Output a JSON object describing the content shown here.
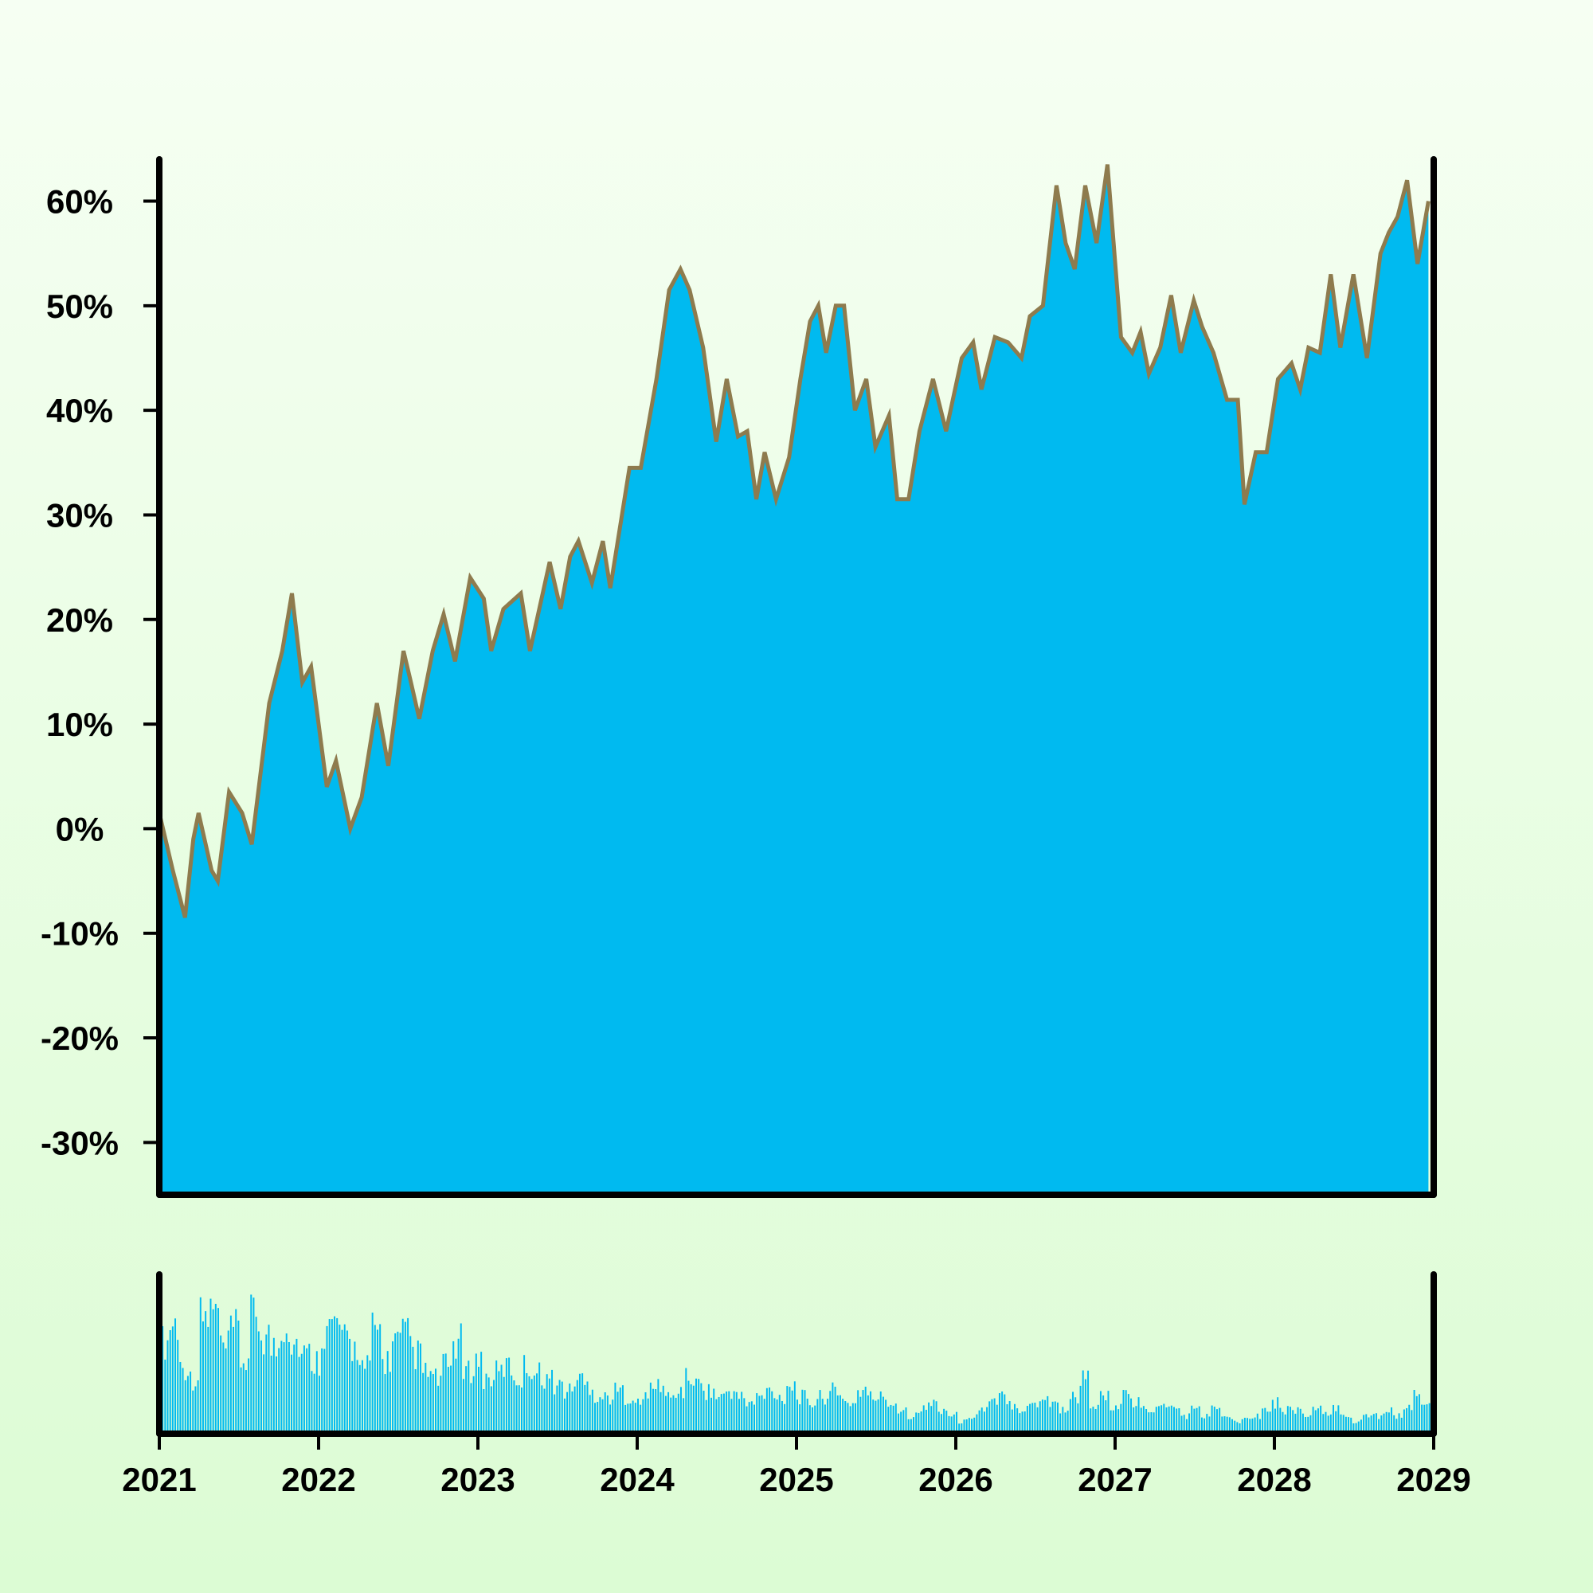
{
  "chart_data": {
    "type": "area",
    "title": "",
    "xlabel": "",
    "ylabel": "",
    "x_range": [
      "2021-01-01",
      "2029-01-01"
    ],
    "x_ticks": [
      "2021",
      "2022",
      "2023",
      "2024",
      "2025",
      "2026",
      "2027",
      "2028",
      "2029"
    ],
    "ylim": [
      -35,
      64
    ],
    "y_ticks": [
      "60%",
      "50%",
      "40%",
      "30%",
      "20%",
      "10%",
      "0%",
      "-10%",
      "-20%",
      "-30%"
    ],
    "y_tick_values": [
      60,
      50,
      40,
      30,
      20,
      10,
      0,
      -10,
      -20,
      -30
    ],
    "y_unit": "%",
    "grid": false,
    "legend": "none",
    "colors": {
      "fill": "#00baf0",
      "line": "#8e7b4e",
      "axis": "#000000"
    },
    "series": [
      {
        "values": [
          [
            "2021-01-01",
            1.5
          ],
          [
            "2021-02-01",
            -4
          ],
          [
            "2021-03-01",
            -8.5
          ],
          [
            "2021-03-20",
            -1
          ],
          [
            "2021-04-01",
            1.5
          ],
          [
            "2021-05-01",
            -4
          ],
          [
            "2021-05-15",
            -5
          ],
          [
            "2021-06-10",
            3.5
          ],
          [
            "2021-07-10",
            1.5
          ],
          [
            "2021-08-01",
            -1.5
          ],
          [
            "2021-09-10",
            12
          ],
          [
            "2021-10-10",
            17
          ],
          [
            "2021-11-01",
            22.5
          ],
          [
            "2021-11-25",
            14
          ],
          [
            "2021-12-15",
            15.5
          ],
          [
            "2022-01-20",
            4
          ],
          [
            "2022-02-10",
            6.5
          ],
          [
            "2022-03-15",
            0
          ],
          [
            "2022-04-10",
            3
          ],
          [
            "2022-05-15",
            12
          ],
          [
            "2022-06-10",
            6
          ],
          [
            "2022-07-15",
            17
          ],
          [
            "2022-08-01",
            14
          ],
          [
            "2022-08-20",
            10.5
          ],
          [
            "2022-09-20",
            17
          ],
          [
            "2022-10-15",
            20.5
          ],
          [
            "2022-11-10",
            16
          ],
          [
            "2022-12-15",
            24
          ],
          [
            "2023-01-15",
            22
          ],
          [
            "2023-02-01",
            17
          ],
          [
            "2023-03-01",
            21
          ],
          [
            "2023-04-10",
            22.5
          ],
          [
            "2023-05-01",
            17
          ],
          [
            "2023-06-15",
            25.5
          ],
          [
            "2023-07-10",
            21
          ],
          [
            "2023-08-01",
            26
          ],
          [
            "2023-08-20",
            27.5
          ],
          [
            "2023-09-20",
            23.5
          ],
          [
            "2023-10-15",
            27.5
          ],
          [
            "2023-11-01",
            23
          ],
          [
            "2023-12-15",
            34.5
          ],
          [
            "2024-01-10",
            34.5
          ],
          [
            "2024-02-15",
            43
          ],
          [
            "2024-03-15",
            51.5
          ],
          [
            "2024-04-10",
            53.5
          ],
          [
            "2024-05-01",
            51.5
          ],
          [
            "2024-06-01",
            46
          ],
          [
            "2024-07-01",
            37
          ],
          [
            "2024-07-25",
            43
          ],
          [
            "2024-08-20",
            37.5
          ],
          [
            "2024-09-10",
            38
          ],
          [
            "2024-10-01",
            31.5
          ],
          [
            "2024-10-20",
            36
          ],
          [
            "2024-11-15",
            31.5
          ],
          [
            "2024-12-15",
            35.5
          ],
          [
            "2025-01-10",
            43
          ],
          [
            "2025-02-01",
            48.5
          ],
          [
            "2025-02-20",
            50
          ],
          [
            "2025-03-10",
            45.5
          ],
          [
            "2025-04-01",
            50
          ],
          [
            "2025-04-20",
            50
          ],
          [
            "2025-05-15",
            40
          ],
          [
            "2025-06-10",
            43
          ],
          [
            "2025-07-01",
            36.5
          ],
          [
            "2025-08-01",
            39.5
          ],
          [
            "2025-08-20",
            31.5
          ],
          [
            "2025-09-15",
            31.5
          ],
          [
            "2025-10-10",
            38
          ],
          [
            "2025-11-10",
            43
          ],
          [
            "2025-12-10",
            38
          ],
          [
            "2026-01-15",
            45
          ],
          [
            "2026-02-10",
            46.5
          ],
          [
            "2026-03-01",
            42
          ],
          [
            "2026-04-01",
            47
          ],
          [
            "2026-05-01",
            46.5
          ],
          [
            "2026-06-01",
            45
          ],
          [
            "2026-06-20",
            49
          ],
          [
            "2026-07-20",
            50
          ],
          [
            "2026-08-20",
            61.5
          ],
          [
            "2026-09-10",
            56
          ],
          [
            "2026-10-01",
            53.5
          ],
          [
            "2026-10-25",
            61.5
          ],
          [
            "2026-11-20",
            56
          ],
          [
            "2026-12-15",
            63.5
          ],
          [
            "2027-01-15",
            47
          ],
          [
            "2027-02-10",
            45.5
          ],
          [
            "2027-03-01",
            47.5
          ],
          [
            "2027-03-20",
            43.5
          ],
          [
            "2027-04-15",
            46
          ],
          [
            "2027-05-10",
            51
          ],
          [
            "2027-06-01",
            45.5
          ],
          [
            "2027-07-01",
            50.5
          ],
          [
            "2027-07-20",
            48
          ],
          [
            "2027-08-15",
            45.5
          ],
          [
            "2027-09-15",
            41
          ],
          [
            "2027-10-10",
            41
          ],
          [
            "2027-10-25",
            31
          ],
          [
            "2027-11-20",
            36
          ],
          [
            "2027-12-15",
            36
          ],
          [
            "2028-01-10",
            43
          ],
          [
            "2028-02-10",
            44.5
          ],
          [
            "2028-03-01",
            42
          ],
          [
            "2028-03-20",
            46
          ],
          [
            "2028-04-15",
            45.5
          ],
          [
            "2028-05-10",
            53
          ],
          [
            "2028-06-01",
            46
          ],
          [
            "2028-07-01",
            53
          ],
          [
            "2028-08-01",
            45
          ],
          [
            "2028-09-01",
            55
          ],
          [
            "2028-09-20",
            57
          ],
          [
            "2028-10-10",
            58.5
          ],
          [
            "2028-11-01",
            62
          ],
          [
            "2028-11-25",
            54
          ],
          [
            "2028-12-20",
            60
          ]
        ]
      }
    ],
    "volume": {
      "type": "bar",
      "description_unit": "relative",
      "values": [
        0.75,
        0.9,
        0.55,
        0.45,
        0.95,
        1.0,
        0.7,
        0.85,
        0.6,
        0.95,
        0.8,
        0.7,
        0.9,
        0.75,
        0.65,
        0.6,
        0.85,
        0.9,
        0.75,
        0.7,
        0.55,
        0.85,
        0.6,
        0.75,
        0.8,
        0.65,
        0.5,
        0.45,
        0.55,
        0.75,
        0.5,
        0.6,
        0.45,
        0.5,
        0.55,
        0.45,
        0.55,
        0.5,
        0.45,
        0.4,
        0.35,
        0.45,
        0.4,
        0.3,
        0.3,
        0.35,
        0.3,
        0.25,
        0.35,
        0.4,
        0.3,
        0.35,
        0.45,
        0.4,
        0.35,
        0.3,
        0.35,
        0.3,
        0.25,
        0.3,
        0.35,
        0.3,
        0.4,
        0.3,
        0.25,
        0.3,
        0.35,
        0.3,
        0.25,
        0.35,
        0.3,
        0.3,
        0.25,
        0.2,
        0.15,
        0.2,
        0.25,
        0.2,
        0.15,
        0.1,
        0.15,
        0.2,
        0.25,
        0.3,
        0.25,
        0.2,
        0.25,
        0.3,
        0.25,
        0.2,
        0.3,
        0.45,
        0.25,
        0.3,
        0.2,
        0.3,
        0.25,
        0.2,
        0.2,
        0.25,
        0.2,
        0.15,
        0.2,
        0.15,
        0.2,
        0.15,
        0.1,
        0.15,
        0.15,
        0.2,
        0.25,
        0.2,
        0.2,
        0.15,
        0.2,
        0.15,
        0.2,
        0.15,
        0.1,
        0.15,
        0.15,
        0.2,
        0.15,
        0.2,
        0.3,
        0.25
      ]
    }
  }
}
